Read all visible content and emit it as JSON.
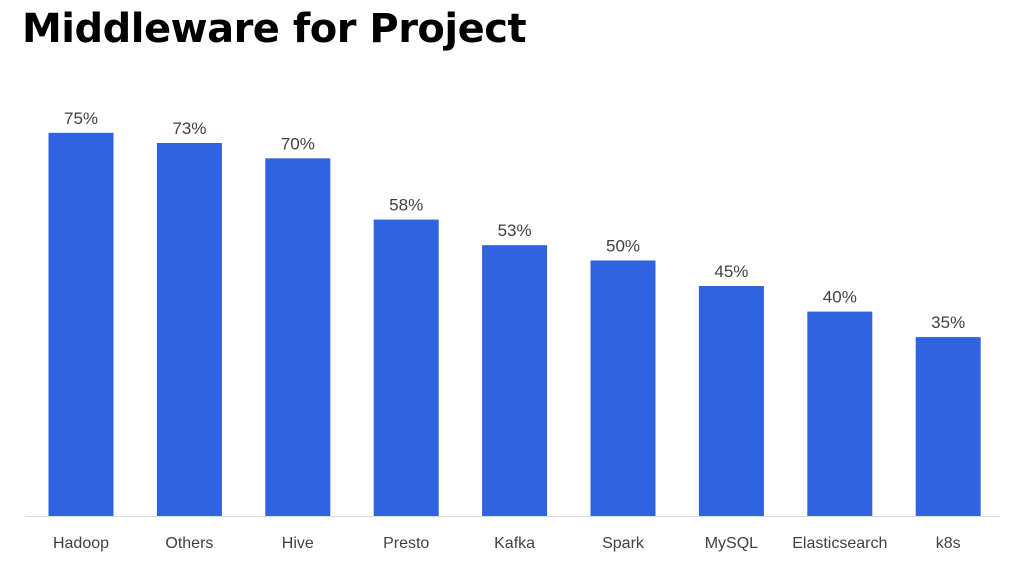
{
  "chart_data": {
    "type": "bar",
    "title": "Middleware for Project",
    "categories": [
      "Hadoop",
      "Others",
      "Hive",
      "Presto",
      "Kafka",
      "Spark",
      "MySQL",
      "Elasticsearch",
      "k8s"
    ],
    "values": [
      75,
      73,
      70,
      58,
      53,
      50,
      45,
      40,
      35
    ],
    "data_labels": [
      "75%",
      "73%",
      "70%",
      "58%",
      "53%",
      "50%",
      "45%",
      "40%",
      "35%"
    ],
    "xlabel": "",
    "ylabel": "",
    "ylim": [
      0,
      100
    ],
    "unit": "%",
    "grid": false,
    "legend": "none",
    "bar_color": "#2f63e0",
    "axis_color": "#d9d9d9"
  }
}
